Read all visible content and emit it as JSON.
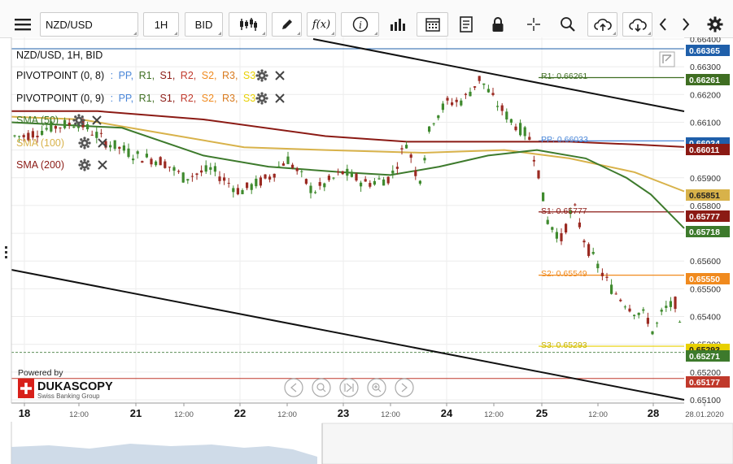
{
  "toolbar": {
    "menu_icon": "hamburger-menu-icon",
    "symbol": "NZD/USD",
    "timeframe": "1H",
    "price_side": "BID",
    "tools": [
      "candle-type-icon",
      "drawing-pen-icon",
      "function-fx-icon",
      "info-icon",
      "bar-chart-icon",
      "calendar-icon",
      "document-icon",
      "lock-icon",
      "crosshair-icon",
      "zoom-icon",
      "cloud-upload-icon",
      "cloud-download-icon",
      "chevron-left-icon",
      "chevron-right-icon",
      "gear-icon"
    ],
    "fx_label": "f(x)"
  },
  "legend": {
    "title": "NZD/USD, 1H, BID",
    "pivot1": {
      "name": "PIVOTPOINT (0, 8)",
      "items": [
        ":",
        "PP,",
        "R1,",
        "S1,",
        "R2,",
        "S2,",
        "R3,",
        "S3"
      ]
    },
    "pivot2": {
      "name": "PIVOTPOINT (0, 9)",
      "items": [
        ":",
        "PP,",
        "R1,",
        "S1,",
        "R2,",
        "S2,",
        "R3,",
        "S3"
      ]
    },
    "sma50": "SMA (50)",
    "sma100": "SMA (100)",
    "sma200": "SMA (200)"
  },
  "pivot_labels": {
    "r1": "R1: 0.66261",
    "pp": "PP: 0.66033",
    "s1": "S1: 0.65777",
    "s2": "S2: 0.65549",
    "s3": "S3: 0.65293"
  },
  "branding": {
    "powered_by": "Powered by",
    "brand": "DUKASCOPY",
    "sub": "Swiss Banking Group"
  },
  "colors": {
    "sma50": "#3d7a2c",
    "sma100": "#d8b24a",
    "sma200": "#8b1a14",
    "pp": "#4a86d8",
    "r1": "#3f6e22",
    "s1": "#8b1a14",
    "s2": "#f08a1e",
    "s3": "#e8d000",
    "bull": "#3f8a2e",
    "bear": "#9b2a22",
    "trend": "#111111",
    "price_current": "#c0392b",
    "price_marker": "#1f5faa"
  },
  "chart_data": {
    "type": "candlestick",
    "symbol": "NZD/USD",
    "timeframe": "1H",
    "ylim": [
      0.651,
      0.664
    ],
    "y_ticks": [
      "0.65100",
      "0.65200",
      "0.65300",
      "0.65400",
      "0.65500",
      "0.65600",
      "0.65700",
      "0.65800",
      "0.65900",
      "0.66000",
      "0.66100",
      "0.66200",
      "0.66300",
      "0.66400"
    ],
    "x_labels": [
      "18",
      "12:00",
      "21",
      "12:00",
      "22",
      "12:00",
      "23",
      "12:00",
      "24",
      "12:00",
      "25",
      "12:00",
      "28",
      "28.01.2020"
    ],
    "price_tags": [
      {
        "label": "0.66365",
        "color": "#1f5faa"
      },
      {
        "label": "0.66261",
        "color": "#3f6e22"
      },
      {
        "label": "0.66034",
        "color": "#1f5faa"
      },
      {
        "label": "0.66011",
        "color": "#8b1a14"
      },
      {
        "label": "0.65851",
        "color": "#d8b24a"
      },
      {
        "label": "0.65777",
        "color": "#8b1a14"
      },
      {
        "label": "0.65718",
        "color": "#3d7a2c"
      },
      {
        "label": "0.65550",
        "color": "#f08a1e"
      },
      {
        "label": "0.65293",
        "color": "#e8d000"
      },
      {
        "label": "0.65271",
        "color": "#3d7a2c"
      },
      {
        "label": "0.65177",
        "color": "#c0392b"
      }
    ],
    "pivots": {
      "R1": 0.66261,
      "PP": 0.66033,
      "S1": 0.65777,
      "S2": 0.65549,
      "S3": 0.65293
    },
    "sma50_end": 0.65718,
    "sma100_end": 0.65851,
    "sma200_end": 0.66011,
    "last_close": 0.65177
  }
}
